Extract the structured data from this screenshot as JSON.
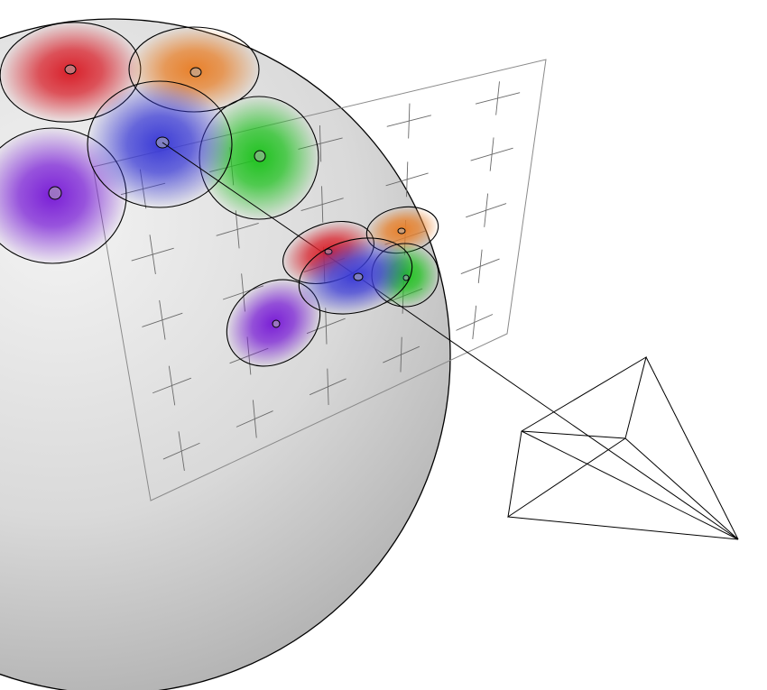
{
  "diagram": {
    "kind": "sphere-projection-illustration",
    "background": "#ffffff",
    "sphere": {
      "fill_light": "#f3f3f3",
      "fill_dark": "#a9a9a9",
      "stroke": "#000000"
    },
    "image_plane": {
      "stroke": "#8a8a8a",
      "grid_rows": 5,
      "grid_cols": 5
    },
    "camera": {
      "stroke": "#000000"
    },
    "blob_colors": {
      "red": "#d9202a",
      "orange": "#e8802a",
      "blue": "#3b3bd6",
      "green": "#1fc21f",
      "purple": "#7a1fd6"
    },
    "sphere_blobs": [
      "red",
      "orange",
      "purple",
      "green",
      "blue"
    ],
    "projected_blobs": [
      "red",
      "orange",
      "purple",
      "green",
      "blue"
    ]
  }
}
